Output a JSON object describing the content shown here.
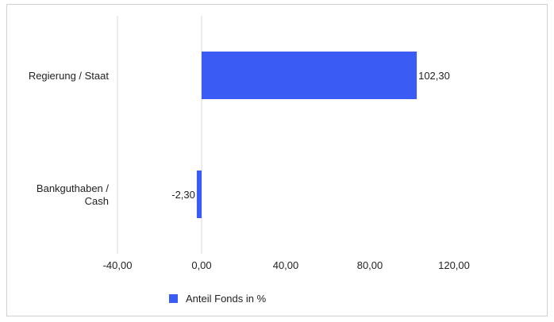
{
  "chart_data": {
    "type": "bar",
    "orientation": "horizontal",
    "categories": [
      "Regierung / Staat",
      "Bankguthaben / Cash"
    ],
    "category_label_lines": [
      [
        "Regierung / Staat"
      ],
      [
        "Bankguthaben /",
        "Cash"
      ]
    ],
    "series": [
      {
        "name": "Anteil Fonds in %",
        "values": [
          102.3,
          -2.3
        ],
        "color": "#3a5cf5"
      }
    ],
    "data_labels": [
      "102,30",
      "-2,30"
    ],
    "xlim": [
      -40,
      120
    ],
    "xticks": [
      -40,
      0,
      40,
      80,
      120
    ],
    "xtick_labels": [
      "-40,00",
      "0,00",
      "40,00",
      "80,00",
      "120,00"
    ],
    "title": "",
    "xlabel": "",
    "ylabel": "",
    "grid": true,
    "legend_position": "bottom"
  }
}
